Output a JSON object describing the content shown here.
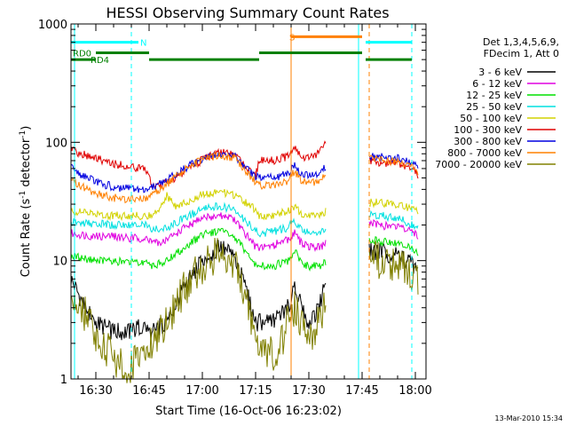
{
  "chart_data": {
    "type": "line",
    "title": "HESSI Observing Summary Count Rates",
    "xlabel": "Start Time (16-Oct-06 16:23:02)",
    "ylabel_main": "Count Rate (s",
    "ylabel_sup1": "-1",
    "ylabel_mid": " detector",
    "ylabel_sup2": "-1",
    "ylabel_end": ")",
    "y_scale": "log",
    "xlim": [
      "16:23",
      "18:03"
    ],
    "ylim": [
      1,
      1000
    ],
    "x_ticks": [
      "16:30",
      "16:45",
      "17:00",
      "17:15",
      "17:30",
      "17:45",
      "18:00"
    ],
    "y_ticks": [
      "1",
      "10",
      "100",
      "1000"
    ],
    "legend_position": "top-right",
    "legend_header": [
      "Det 1,3,4,5,6,9,",
      "FDecim 1, Att 0"
    ],
    "timestamp": "13-Mar-2010 15:34",
    "gaps": [
      [
        "17:35",
        "17:47"
      ]
    ],
    "series": [
      {
        "name": "3 - 6 keV",
        "color": "#000000",
        "points": [
          [
            "16:23",
            7
          ],
          [
            "16:27",
            4
          ],
          [
            "16:30",
            3
          ],
          [
            "16:35",
            2.5
          ],
          [
            "16:40",
            2.5
          ],
          [
            "16:44",
            3
          ],
          [
            "16:46",
            2.5
          ],
          [
            "16:50",
            3
          ],
          [
            "16:55",
            6
          ],
          [
            "17:00",
            10
          ],
          [
            "17:05",
            13
          ],
          [
            "17:09",
            11
          ],
          [
            "17:12",
            6
          ],
          [
            "17:15",
            3
          ],
          [
            "17:16",
            3
          ],
          [
            "17:20",
            3
          ],
          [
            "17:24",
            4
          ],
          [
            "17:26",
            6
          ],
          [
            "17:28",
            4
          ],
          [
            "17:30",
            3
          ],
          [
            "17:33",
            4
          ],
          [
            "17:35",
            8
          ],
          [
            "17:47",
            12
          ],
          [
            "17:50",
            12
          ],
          [
            "17:55",
            11
          ],
          [
            "17:58",
            10
          ],
          [
            "18:00",
            9
          ],
          [
            "18:01",
            8
          ]
        ]
      },
      {
        "name": "6 - 12 keV",
        "color": "#e000e0",
        "points": [
          [
            "16:23",
            17
          ],
          [
            "16:30",
            16
          ],
          [
            "16:35",
            16
          ],
          [
            "16:40",
            15.5
          ],
          [
            "16:44",
            15.5
          ],
          [
            "16:46",
            14
          ],
          [
            "16:50",
            15
          ],
          [
            "16:55",
            19
          ],
          [
            "17:00",
            23
          ],
          [
            "17:05",
            24
          ],
          [
            "17:09",
            22
          ],
          [
            "17:12",
            17
          ],
          [
            "17:15",
            13
          ],
          [
            "17:16",
            13
          ],
          [
            "17:20",
            13.5
          ],
          [
            "17:24",
            15
          ],
          [
            "17:26",
            17
          ],
          [
            "17:28",
            14
          ],
          [
            "17:30",
            13
          ],
          [
            "17:33",
            13
          ],
          [
            "17:35",
            14
          ],
          [
            "17:47",
            21
          ],
          [
            "17:50",
            20
          ],
          [
            "17:55",
            19
          ],
          [
            "17:58",
            18
          ],
          [
            "18:00",
            17
          ],
          [
            "18:01",
            15
          ]
        ]
      },
      {
        "name": "12 - 25 keV",
        "color": "#00e000",
        "points": [
          [
            "16:23",
            11
          ],
          [
            "16:30",
            10
          ],
          [
            "16:35",
            10
          ],
          [
            "16:40",
            9.5
          ],
          [
            "16:44",
            9.5
          ],
          [
            "16:46",
            9
          ],
          [
            "16:50",
            10
          ],
          [
            "16:55",
            13
          ],
          [
            "17:00",
            16.5
          ],
          [
            "17:05",
            18
          ],
          [
            "17:09",
            16
          ],
          [
            "17:12",
            12
          ],
          [
            "17:15",
            9
          ],
          [
            "17:16",
            9
          ],
          [
            "17:20",
            9
          ],
          [
            "17:24",
            10
          ],
          [
            "17:26",
            12
          ],
          [
            "17:28",
            9.5
          ],
          [
            "17:30",
            9
          ],
          [
            "17:33",
            9
          ],
          [
            "17:35",
            10
          ],
          [
            "17:47",
            15
          ],
          [
            "17:50",
            14.5
          ],
          [
            "17:55",
            14
          ],
          [
            "17:58",
            13
          ],
          [
            "18:00",
            12
          ],
          [
            "18:01",
            11
          ]
        ]
      },
      {
        "name": "25 - 50 keV",
        "color": "#00e0e0",
        "points": [
          [
            "16:23",
            21
          ],
          [
            "16:30",
            20.5
          ],
          [
            "16:35",
            20
          ],
          [
            "16:40",
            20
          ],
          [
            "16:44",
            20
          ],
          [
            "16:46",
            18
          ],
          [
            "16:50",
            19
          ],
          [
            "16:55",
            23
          ],
          [
            "17:00",
            27
          ],
          [
            "17:05",
            29
          ],
          [
            "17:09",
            27
          ],
          [
            "17:12",
            22
          ],
          [
            "17:15",
            18
          ],
          [
            "17:16",
            17
          ],
          [
            "17:20",
            17.5
          ],
          [
            "17:24",
            19
          ],
          [
            "17:26",
            22
          ],
          [
            "17:28",
            18.5
          ],
          [
            "17:30",
            17
          ],
          [
            "17:33",
            17
          ],
          [
            "17:35",
            18
          ],
          [
            "17:47",
            25
          ],
          [
            "17:50",
            24
          ],
          [
            "17:55",
            23
          ],
          [
            "17:58",
            21
          ],
          [
            "18:00",
            20
          ],
          [
            "18:01",
            19
          ]
        ]
      },
      {
        "name": "50 - 100 keV",
        "color": "#d2d200",
        "points": [
          [
            "16:23",
            26
          ],
          [
            "16:30",
            25
          ],
          [
            "16:35",
            24
          ],
          [
            "16:40",
            24
          ],
          [
            "16:44",
            24
          ],
          [
            "16:46",
            25
          ],
          [
            "16:48",
            28
          ],
          [
            "16:50",
            36
          ],
          [
            "16:52",
            29
          ],
          [
            "16:55",
            31
          ],
          [
            "17:00",
            36
          ],
          [
            "17:05",
            38
          ],
          [
            "17:09",
            36
          ],
          [
            "17:12",
            31
          ],
          [
            "17:15",
            27
          ],
          [
            "17:16",
            24
          ],
          [
            "17:20",
            24
          ],
          [
            "17:24",
            26
          ],
          [
            "17:26",
            28
          ],
          [
            "17:28",
            25
          ],
          [
            "17:30",
            24
          ],
          [
            "17:33",
            25
          ],
          [
            "17:35",
            26
          ],
          [
            "17:47",
            31
          ],
          [
            "17:50",
            31
          ],
          [
            "17:55",
            30
          ],
          [
            "17:58",
            28
          ],
          [
            "18:00",
            27
          ],
          [
            "18:01",
            25
          ]
        ]
      },
      {
        "name": "100 - 300 keV",
        "color": "#e00000",
        "points": [
          [
            "16:23",
            90
          ],
          [
            "16:25",
            82
          ],
          [
            "16:30",
            73
          ],
          [
            "16:35",
            66
          ],
          [
            "16:40",
            62
          ],
          [
            "16:44",
            60
          ],
          [
            "16:46",
            42
          ],
          [
            "16:50",
            45
          ],
          [
            "16:55",
            57
          ],
          [
            "17:00",
            71
          ],
          [
            "17:05",
            83
          ],
          [
            "17:09",
            78
          ],
          [
            "17:12",
            63
          ],
          [
            "17:15",
            52
          ],
          [
            "17:16",
            70
          ],
          [
            "17:20",
            70
          ],
          [
            "17:24",
            76
          ],
          [
            "17:26",
            90
          ],
          [
            "17:28",
            75
          ],
          [
            "17:30",
            74
          ],
          [
            "17:33",
            82
          ],
          [
            "17:35",
            105
          ],
          [
            "17:47",
            69
          ],
          [
            "17:50",
            68
          ],
          [
            "17:55",
            65
          ],
          [
            "17:58",
            61
          ],
          [
            "18:00",
            57
          ],
          [
            "18:01",
            52
          ]
        ]
      },
      {
        "name": "300 - 800 keV",
        "color": "#0000e0",
        "points": [
          [
            "16:23",
            62
          ],
          [
            "16:25",
            55
          ],
          [
            "16:30",
            46
          ],
          [
            "16:35",
            42
          ],
          [
            "16:40",
            40
          ],
          [
            "16:44",
            39
          ],
          [
            "16:46",
            42
          ],
          [
            "16:50",
            48
          ],
          [
            "16:55",
            60
          ],
          [
            "17:00",
            73
          ],
          [
            "17:05",
            80
          ],
          [
            "17:09",
            76
          ],
          [
            "17:12",
            62
          ],
          [
            "17:15",
            52
          ],
          [
            "17:16",
            50
          ],
          [
            "17:20",
            50
          ],
          [
            "17:24",
            54
          ],
          [
            "17:26",
            65
          ],
          [
            "17:28",
            54
          ],
          [
            "17:30",
            52
          ],
          [
            "17:33",
            56
          ],
          [
            "17:35",
            64
          ],
          [
            "17:47",
            76
          ],
          [
            "17:50",
            75
          ],
          [
            "17:55",
            73
          ],
          [
            "17:58",
            68
          ],
          [
            "18:00",
            64
          ],
          [
            "18:01",
            58
          ]
        ]
      },
      {
        "name": "800 - 7000 keV",
        "color": "#ff8000",
        "points": [
          [
            "16:23",
            50
          ],
          [
            "16:25",
            44
          ],
          [
            "16:30",
            37
          ],
          [
            "16:35",
            34
          ],
          [
            "16:40",
            33
          ],
          [
            "16:44",
            33
          ],
          [
            "16:46",
            36
          ],
          [
            "16:50",
            44
          ],
          [
            "16:55",
            58
          ],
          [
            "17:00",
            72
          ],
          [
            "17:05",
            78
          ],
          [
            "17:09",
            74
          ],
          [
            "17:12",
            58
          ],
          [
            "17:15",
            46
          ],
          [
            "17:16",
            43
          ],
          [
            "17:20",
            43
          ],
          [
            "17:24",
            47
          ],
          [
            "17:26",
            57
          ],
          [
            "17:28",
            47
          ],
          [
            "17:30",
            45
          ],
          [
            "17:33",
            48
          ],
          [
            "17:35",
            55
          ],
          [
            "17:47",
            72
          ],
          [
            "17:50",
            71
          ],
          [
            "17:55",
            69
          ],
          [
            "17:58",
            65
          ],
          [
            "18:00",
            61
          ],
          [
            "18:01",
            55
          ]
        ]
      },
      {
        "name": "7000 - 20000 keV",
        "color": "#808000",
        "points": [
          [
            "16:23",
            5
          ],
          [
            "16:26",
            4
          ],
          [
            "16:28",
            3
          ],
          [
            "16:30",
            2
          ],
          [
            "16:34",
            1.8
          ],
          [
            "16:36",
            1.4
          ],
          [
            "16:38",
            1.2
          ],
          [
            "16:40",
            1.3
          ],
          [
            "16:43",
            1.5
          ],
          [
            "16:45",
            1.8
          ],
          [
            "16:48",
            2.5
          ],
          [
            "16:52",
            4
          ],
          [
            "16:56",
            6.5
          ],
          [
            "17:00",
            9
          ],
          [
            "17:05",
            12
          ],
          [
            "17:09",
            10
          ],
          [
            "17:12",
            5
          ],
          [
            "17:15",
            2.5
          ],
          [
            "17:18",
            1.8
          ],
          [
            "17:21",
            1.6
          ],
          [
            "17:24",
            3
          ],
          [
            "17:26",
            4
          ],
          [
            "17:28",
            3
          ],
          [
            "17:31",
            2.5
          ],
          [
            "17:33",
            3
          ],
          [
            "17:35",
            5
          ],
          [
            "17:47",
            11
          ],
          [
            "17:50",
            10
          ],
          [
            "17:55",
            9
          ],
          [
            "17:58",
            8
          ],
          [
            "18:00",
            8
          ],
          [
            "18:01",
            7
          ]
        ]
      }
    ],
    "flags": [
      {
        "label": "N",
        "color": "#00ffff",
        "level": 700,
        "start": "16:23",
        "end": "16:42",
        "label_at": "16:42",
        "dashed_style": false
      },
      {
        "label": "N",
        "color": "#00ffff",
        "level": 700,
        "start": "17:46",
        "end": "17:59",
        "label_at": "",
        "dashed_style": false
      },
      {
        "label": "RD0",
        "color": "#008000",
        "level": 570,
        "start": "16:30",
        "end": "16:45",
        "label_at": "16:23",
        "dashed_style": false
      },
      {
        "label": "RD0",
        "color": "#008000",
        "level": 570,
        "start": "17:16",
        "end": "17:45",
        "label_at": "",
        "dashed_style": false
      },
      {
        "label": "RD4",
        "color": "#008000",
        "level": 500,
        "start": "16:23",
        "end": "16:30",
        "label_at": "16:28",
        "dashed_style": false
      },
      {
        "label": "RD4",
        "color": "#008000",
        "level": 500,
        "start": "16:45",
        "end": "17:16",
        "label_at": "",
        "dashed_style": false
      },
      {
        "label": "RD4",
        "color": "#008000",
        "level": 500,
        "start": "17:46",
        "end": "17:59",
        "label_at": "",
        "dashed_style": false
      },
      {
        "label": "S",
        "color": "#ff8000",
        "level": 780,
        "start": "17:25",
        "end": "17:45",
        "label_at": "17:24",
        "dashed_style": false
      }
    ],
    "vlines": [
      {
        "time": "16:24",
        "color": "#00ffff",
        "dashed": false
      },
      {
        "time": "16:40",
        "color": "#00ffff",
        "dashed": true
      },
      {
        "time": "17:25",
        "color": "#ff8000",
        "dashed": false
      },
      {
        "time": "17:44",
        "color": "#00ffff",
        "dashed": false
      },
      {
        "time": "17:47",
        "color": "#ff8000",
        "dashed": true
      },
      {
        "time": "17:59",
        "color": "#00ffff",
        "dashed": true
      }
    ]
  }
}
